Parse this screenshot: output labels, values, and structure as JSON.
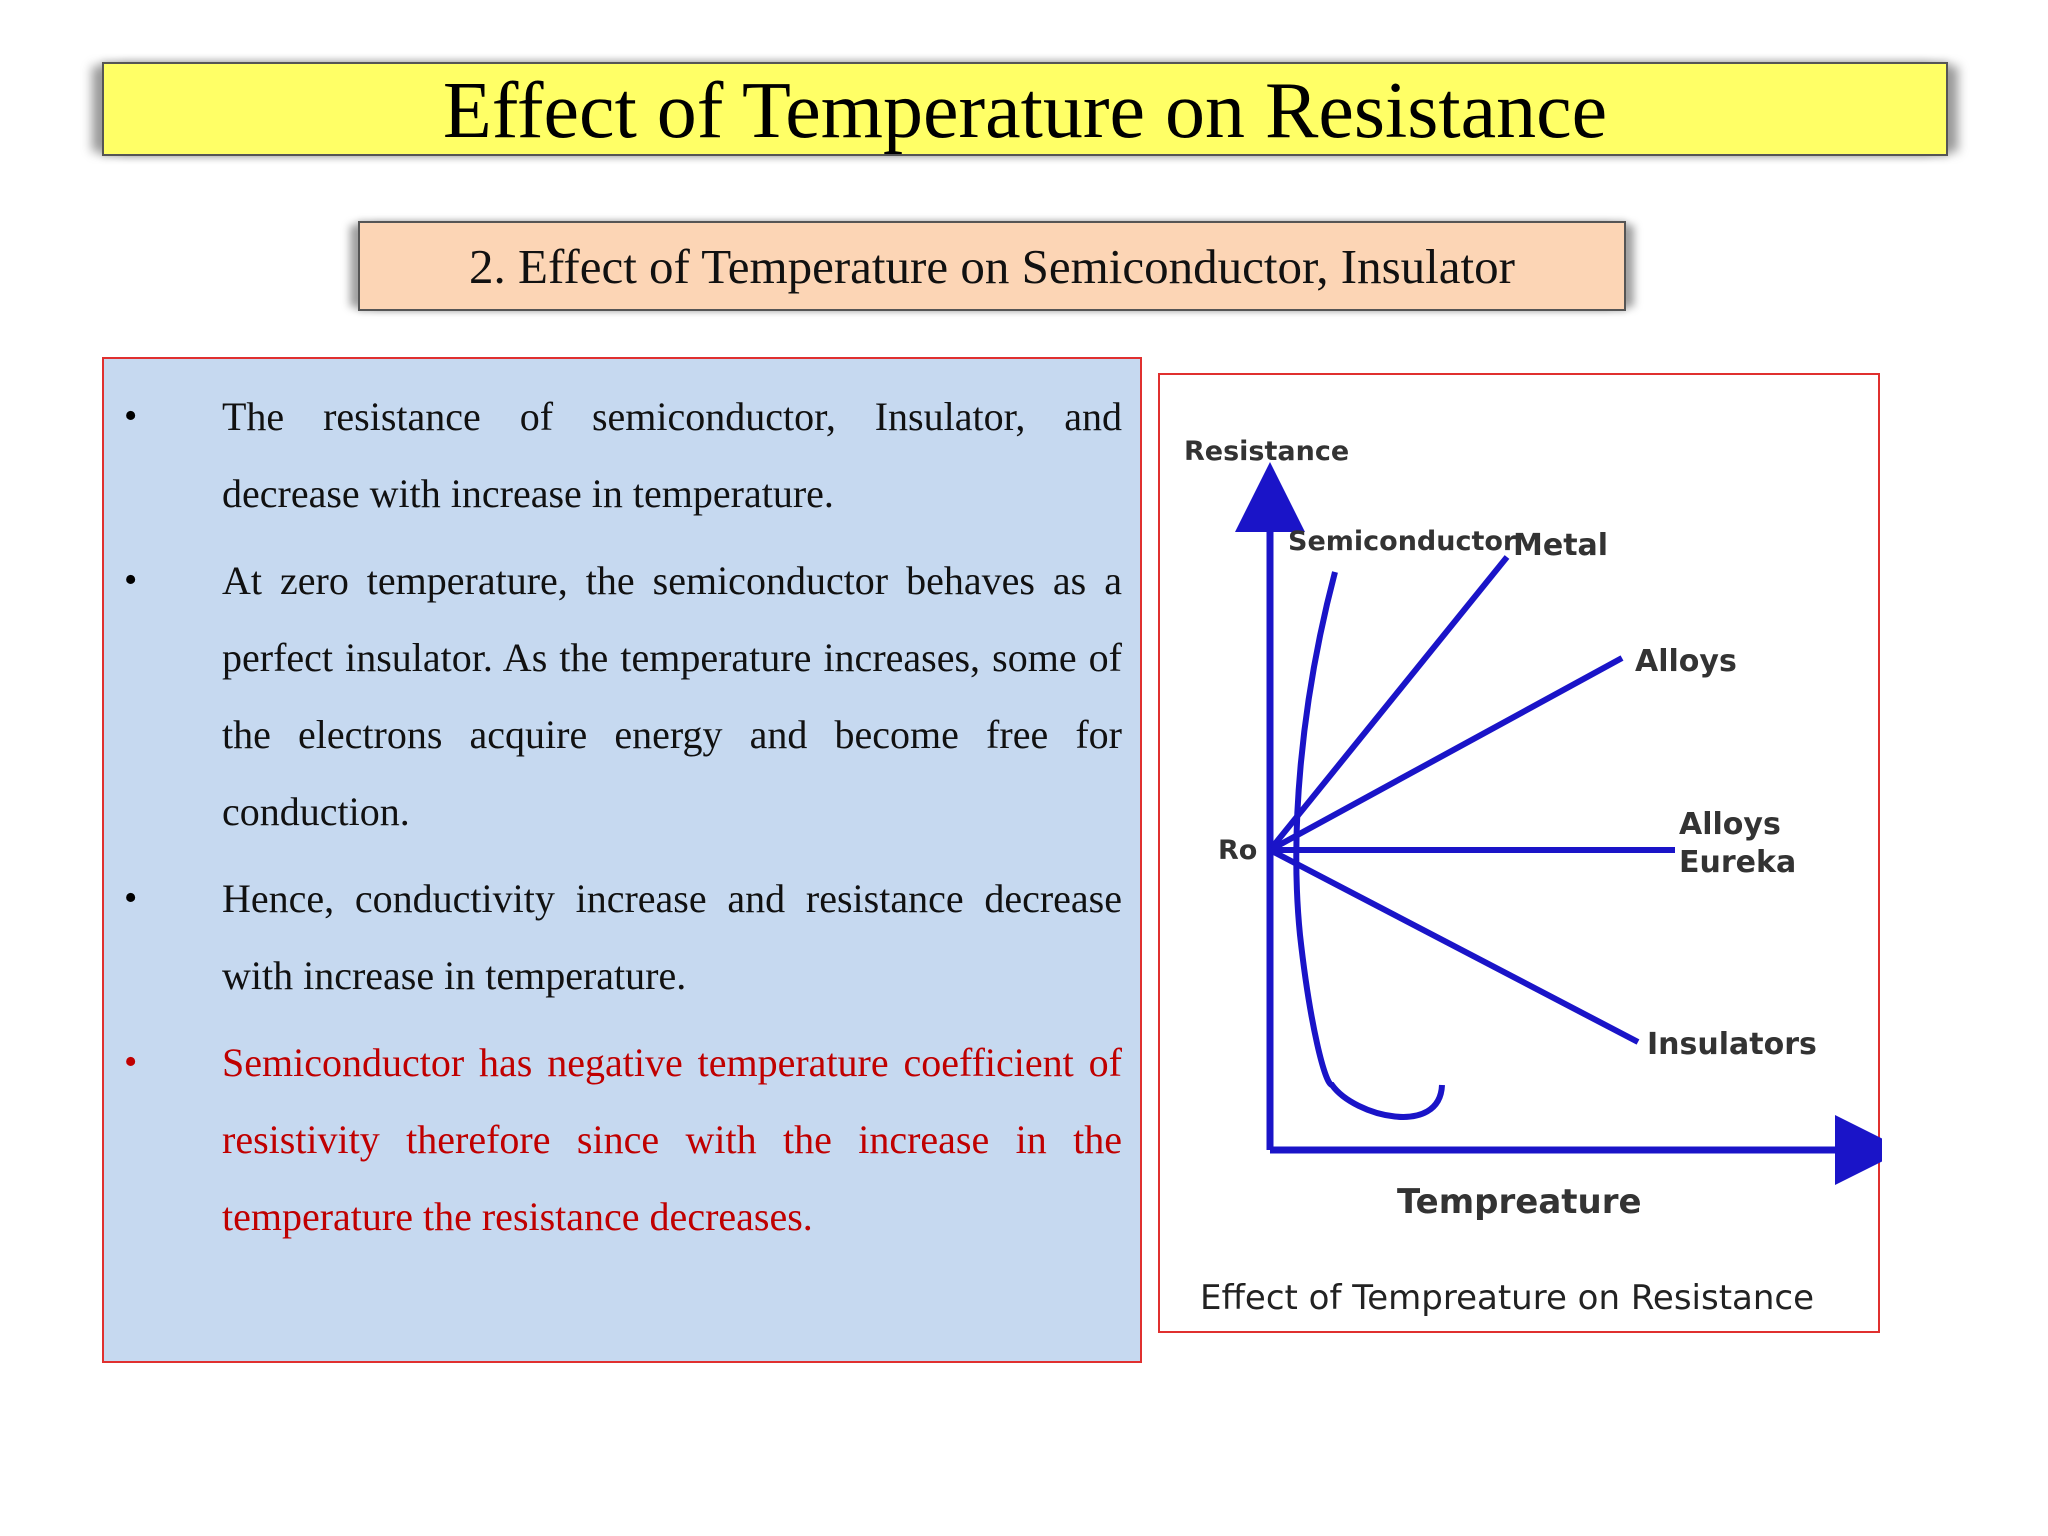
{
  "title": "Effect of Temperature on Resistance",
  "subtitle": "2. Effect of Temperature on Semiconductor, Insulator",
  "bullets": [
    {
      "marker": "•",
      "text": "The resistance of semiconductor, Insulator, and decrease with increase in temperature.",
      "color": "#111111"
    },
    {
      "marker": "•",
      "text": "At zero temperature, the semiconductor behaves as a perfect insulator. As the temperature increases, some of the electrons acquire energy and become free for conduction.",
      "color": "#111111"
    },
    {
      "marker": "•",
      "text": " Hence, conductivity increase and resistance decrease with increase in temperature.",
      "color": "#111111"
    },
    {
      "marker": "•",
      "text": "Semiconductor has negative temperature coefficient of resistivity therefore since with the increase in the temperature the resistance decreases.",
      "color": "#c00000"
    }
  ],
  "figure": {
    "y_axis_label": "Resistance",
    "x_axis_label": "Tempreature",
    "origin_label": "Ro",
    "curve_labels": {
      "semiconductor": "Semiconductor",
      "metal": "Metal",
      "alloys": "Alloys",
      "alloys_eureka_1": "Alloys",
      "alloys_eureka_2": "Eureka",
      "insulators": "Insulators"
    },
    "caption": "Effect of Tempreature on Resistance",
    "line_color": "#1a14c8"
  },
  "colors": {
    "title_bg": "#ffff66",
    "subtitle_bg": "#fcd5b5",
    "panel_bg": "#c6d9f0",
    "panel_border": "#e0302f",
    "highlight_text": "#c00000"
  }
}
